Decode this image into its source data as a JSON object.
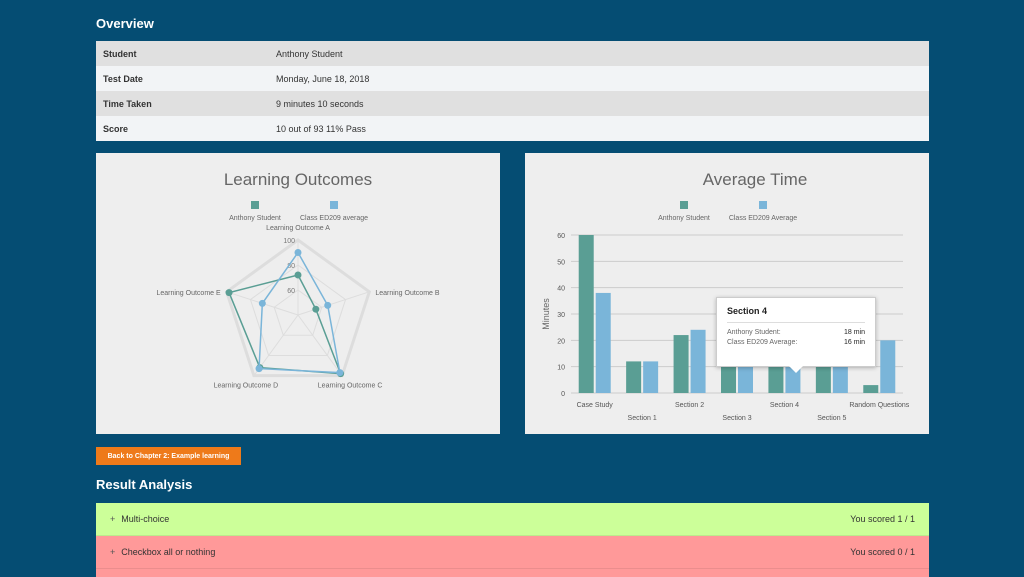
{
  "overview": {
    "title": "Overview",
    "rows": [
      {
        "label": "Student",
        "value": "Anthony Student"
      },
      {
        "label": "Test Date",
        "value": "Monday, June 18, 2018"
      },
      {
        "label": "Time Taken",
        "value": "9 minutes 10 seconds"
      },
      {
        "label": "Score",
        "value": "10 out of 93 11% Pass"
      }
    ]
  },
  "colors": {
    "student": "#5a9e94",
    "class_avg": "#7ab5d9",
    "back_button": "#ee7a1a",
    "row_pass": "#ccff99",
    "row_fail": "#ff9999"
  },
  "chart_data": [
    {
      "type": "radar",
      "title": "Learning Outcomes",
      "legend": [
        "Anthony Student",
        "Class ED209 average"
      ],
      "legend_position": "top",
      "categories": [
        "Learning Outcome A",
        "Learning Outcome B",
        "Learning Outcome C",
        "Learning Outcome D",
        "Learning Outcome E"
      ],
      "ticks": [
        "60",
        "80",
        "100"
      ],
      "range": [
        40,
        100
      ],
      "series": [
        {
          "name": "Anthony Student",
          "values": [
            72,
            55,
            98,
            92,
            98
          ]
        },
        {
          "name": "Class ED209 average",
          "values": [
            90,
            65,
            97,
            93,
            70
          ]
        }
      ]
    },
    {
      "type": "bar",
      "title": "Average Time",
      "legend": [
        "Anthony Student",
        "Class ED209 Average"
      ],
      "legend_position": "top",
      "ylabel": "Minutes",
      "ylim": [
        0,
        60
      ],
      "yticks": [
        "0",
        "10",
        "20",
        "30",
        "40",
        "50",
        "60"
      ],
      "categories": [
        "Case Study",
        "Section 1",
        "Section 2",
        "Section 3",
        "Section 4",
        "Section 5",
        "Random Questions"
      ],
      "series": [
        {
          "name": "Anthony Student",
          "values": [
            60,
            12,
            22,
            25,
            18,
            22,
            3
          ]
        },
        {
          "name": "Class ED209 Average",
          "values": [
            38,
            12,
            24,
            25,
            16,
            24,
            20
          ]
        }
      ],
      "tooltip": {
        "title": "Section 4",
        "rows": [
          {
            "label": "Anthony Student:",
            "value": "18 min"
          },
          {
            "label": "Class ED209 Average:",
            "value": "16 min"
          }
        ]
      }
    }
  ],
  "back_button": {
    "label": "Back to Chapter 2: Example learning"
  },
  "result_analysis": {
    "title": "Result Analysis",
    "items": [
      {
        "label": "Multi-choice",
        "score": "You scored 1 / 1",
        "status": "pass"
      },
      {
        "label": "Checkbox all or nothing",
        "score": "You scored 0 / 1",
        "status": "fail"
      },
      {
        "label": "",
        "score": "",
        "status": "fail"
      }
    ]
  }
}
